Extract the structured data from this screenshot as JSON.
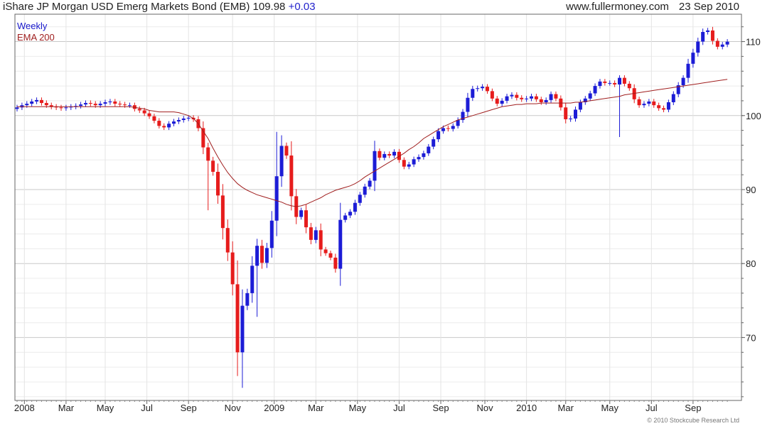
{
  "header": {
    "title": "iShare JP Morgan USD Emerg Markets Bond (EMB)",
    "last": "109.98",
    "change": "+0.03",
    "source": "www.fullermoney.com",
    "date": "23 Sep 2010"
  },
  "legend": {
    "interval": "Weekly",
    "indicator": "EMA 200"
  },
  "copyright": "© 2010 Stockcube Research Ltd",
  "colors": {
    "up": "#1c1cd6",
    "down": "#e61c1c",
    "ema": "#a01e1e",
    "grid": "#d8d8d8",
    "frame": "#666666"
  },
  "chart_data": {
    "type": "candlestick",
    "title": "iShare JP Morgan USD Emerg Markets Bond (EMB)",
    "interval": "Weekly",
    "ylim": [
      61.5,
      113.7
    ],
    "xlim": [
      0,
      146
    ],
    "y_ticks": [
      70,
      80,
      90,
      100,
      110
    ],
    "x_ticks": [
      {
        "label": "2008",
        "i": 1.5
      },
      {
        "label": "Mar",
        "i": 10
      },
      {
        "label": "May",
        "i": 18
      },
      {
        "label": "Jul",
        "i": 26.5
      },
      {
        "label": "Sep",
        "i": 35
      },
      {
        "label": "Nov",
        "i": 44
      },
      {
        "label": "2009",
        "i": 52.5
      },
      {
        "label": "Mar",
        "i": 61
      },
      {
        "label": "May",
        "i": 69.5
      },
      {
        "label": "Jul",
        "i": 78
      },
      {
        "label": "Sep",
        "i": 86.5
      },
      {
        "label": "Nov",
        "i": 95.5
      },
      {
        "label": "2010",
        "i": 104
      },
      {
        "label": "Mar",
        "i": 112
      },
      {
        "label": "May",
        "i": 121
      },
      {
        "label": "Jul",
        "i": 129.5
      },
      {
        "label": "Sep",
        "i": 138
      }
    ],
    "grid": true,
    "weekly_close": [
      101.1,
      101.4,
      101.6,
      101.9,
      102.1,
      101.7,
      101.4,
      101.2,
      101.1,
      101.0,
      101.1,
      101.2,
      101.3,
      101.5,
      101.7,
      101.6,
      101.4,
      101.6,
      101.8,
      101.9,
      101.6,
      101.5,
      101.4,
      101.4,
      100.9,
      100.7,
      100.3,
      99.9,
      99.3,
      98.6,
      98.4,
      98.9,
      99.2,
      99.4,
      99.6,
      99.7,
      99.5,
      98.3,
      95.7,
      93.9,
      92.4,
      89.2,
      84.8,
      81.5,
      77.2,
      68.0,
      74.3,
      76.0,
      79.7,
      82.4,
      80.1,
      82.1,
      85.8,
      91.8,
      95.9,
      94.6,
      89.1,
      86.3,
      87.2,
      84.9,
      83.2,
      84.5,
      81.9,
      81.4,
      80.8,
      79.3,
      85.9,
      86.5,
      87.0,
      88.2,
      89.3,
      90.4,
      91.2,
      95.2,
      94.3,
      94.8,
      94.6,
      95.1,
      94.0,
      93.1,
      93.4,
      94.1,
      94.4,
      94.9,
      95.8,
      96.8,
      97.9,
      98.3,
      98.2,
      98.6,
      99.4,
      100.5,
      102.4,
      103.6,
      103.7,
      103.9,
      103.3,
      102.3,
      101.6,
      102.0,
      102.6,
      102.8,
      102.4,
      102.2,
      102.3,
      102.6,
      102.2,
      101.8,
      102.1,
      102.9,
      102.3,
      101.1,
      99.5,
      99.6,
      100.8,
      101.8,
      102.3,
      103.0,
      104.0,
      104.6,
      104.4,
      104.4,
      104.2,
      105.1,
      104.3,
      103.7,
      102.2,
      101.4,
      101.6,
      101.9,
      101.4,
      101.0,
      100.8,
      101.8,
      102.9,
      104.1,
      105.1,
      107.0,
      108.5,
      110.0,
      111.3,
      111.5,
      110.1,
      109.3,
      109.6,
      109.98
    ],
    "ema_200": [
      101.2,
      101.2,
      101.2,
      101.2,
      101.2,
      101.2,
      101.2,
      101.2,
      101.2,
      101.2,
      101.2,
      101.2,
      101.2,
      101.2,
      101.2,
      101.2,
      101.2,
      101.2,
      101.2,
      101.2,
      101.2,
      101.2,
      101.2,
      101.2,
      101.1,
      101.0,
      100.9,
      100.7,
      100.6,
      100.5,
      100.5,
      100.5,
      100.5,
      100.4,
      100.2,
      100.0,
      99.6,
      98.9,
      97.9,
      96.9,
      95.6,
      94.4,
      93.3,
      92.3,
      91.5,
      90.8,
      90.3,
      89.9,
      89.6,
      89.3,
      89.1,
      88.9,
      88.7,
      88.5,
      88.3,
      88.0,
      87.8,
      87.7,
      87.8,
      88.0,
      88.3,
      88.6,
      88.9,
      89.3,
      89.6,
      89.9,
      90.1,
      90.3,
      90.5,
      90.8,
      91.2,
      91.7,
      92.1,
      92.5,
      92.9,
      93.3,
      93.7,
      94.1,
      94.5,
      94.9,
      95.4,
      95.8,
      96.3,
      96.9,
      97.3,
      97.7,
      98.1,
      98.5,
      98.8,
      99.1,
      99.4,
      99.6,
      99.8,
      100.0,
      100.2,
      100.4,
      100.6,
      100.8,
      101.0,
      101.2,
      101.3,
      101.4,
      101.5,
      101.5,
      101.6,
      101.6,
      101.6,
      101.7,
      101.7,
      101.7,
      101.7,
      101.7,
      101.7,
      101.7,
      101.8,
      101.8,
      101.9,
      102.0,
      102.1,
      102.2,
      102.3,
      102.4,
      102.5,
      102.6,
      102.8,
      102.9,
      103.0,
      103.1,
      103.2,
      103.3,
      103.4,
      103.5,
      103.6,
      103.7,
      103.8,
      103.9,
      104.0,
      104.1,
      104.2,
      104.3,
      104.4,
      104.5,
      104.6,
      104.7,
      104.8,
      104.9
    ]
  }
}
